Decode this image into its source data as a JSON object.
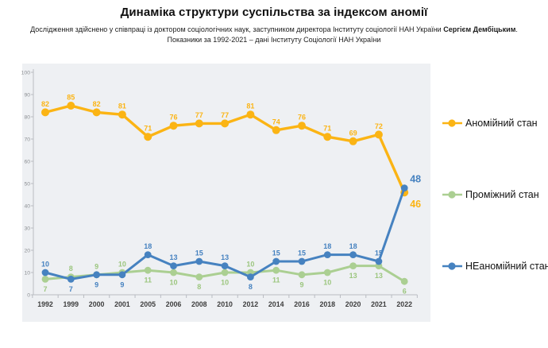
{
  "header": {
    "title": "Динаміка структури суспільства за індексом аномії",
    "subtitle_prefix": "Дослідження здійснено у співпраці із доктором соціологічних наук, заступником директора Інституту соціології НАН України ",
    "subtitle_bold": "Сергієм Дембіцьким",
    "subtitle_suffix": ".",
    "subtitle_line2": "Показники за 1992-2021 – дані Інституту Соціології НАН України"
  },
  "colors": {
    "anomic": "#FBB414",
    "intermediate": "#ABCF92",
    "intermediate_label": "#9CC67F",
    "non_anomic": "#4682C0",
    "panel_bg": "#EEF0F3",
    "axis_line": "#B9BCC2",
    "ytick_label": "#8D9094",
    "xtick_label": "#3D3D3D"
  },
  "chart_data": {
    "type": "line",
    "title": "",
    "xlabel": "",
    "ylabel": "",
    "categories": [
      "1992",
      "1999",
      "2000",
      "2001",
      "2005",
      "2006",
      "2008",
      "2010",
      "2012",
      "2014",
      "2016",
      "2018",
      "2020",
      "2021",
      "2022"
    ],
    "series": [
      {
        "name": "Аномійний стан",
        "color_key": "anomic",
        "values": [
          82,
          85,
          82,
          81,
          71,
          76,
          77,
          77,
          81,
          74,
          76,
          71,
          69,
          72,
          46
        ]
      },
      {
        "name": "Проміжний стан",
        "color_key": "intermediate",
        "values": [
          7,
          8,
          9,
          10,
          11,
          10,
          8,
          10,
          10,
          11,
          9,
          10,
          13,
          13,
          6
        ]
      },
      {
        "name": "НЕаномійний стан",
        "color_key": "non_anomic",
        "values": [
          10,
          7,
          9,
          9,
          18,
          13,
          15,
          13,
          8,
          15,
          15,
          18,
          18,
          15,
          48
        ]
      }
    ],
    "ylim": [
      0,
      100
    ],
    "ytick_step": 10,
    "grid": false,
    "legend_position": "right",
    "data_labels": true
  }
}
